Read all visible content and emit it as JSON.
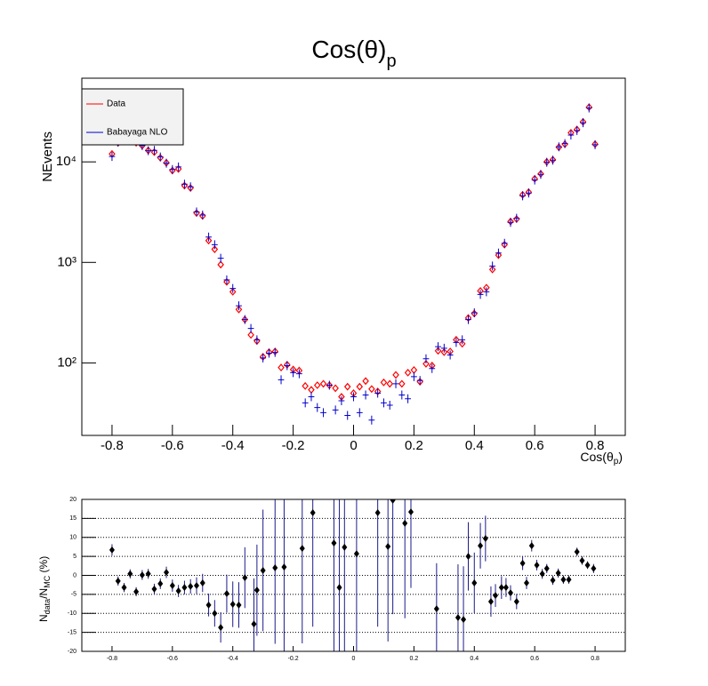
{
  "chart_data": [
    {
      "type": "scatter",
      "title": [
        "Cos(θ)",
        "p"
      ],
      "xlabel": [
        "Cos(θ",
        "p",
        ")"
      ],
      "ylabel": "NEvents",
      "log_y": true,
      "xlim": [
        -0.9,
        0.9
      ],
      "ylim": [
        19,
        68000
      ],
      "xticks": [
        -0.8,
        -0.6,
        -0.4,
        -0.2,
        0,
        0.2,
        0.4,
        0.6,
        0.8
      ],
      "yticks": [
        {
          "value": 100,
          "label": "10²"
        },
        {
          "value": 1000,
          "label": "10³"
        },
        {
          "value": 10000,
          "label": "10⁴"
        }
      ],
      "legend": "top-left",
      "x": [
        -0.8,
        -0.78,
        -0.76,
        -0.74,
        -0.72,
        -0.7,
        -0.68,
        -0.66,
        -0.64,
        -0.62,
        -0.6,
        -0.58,
        -0.56,
        -0.54,
        -0.52,
        -0.5,
        -0.48,
        -0.46,
        -0.44,
        -0.42,
        -0.4,
        -0.38,
        -0.36,
        -0.34,
        -0.32,
        -0.3,
        -0.28,
        -0.26,
        -0.24,
        -0.22,
        -0.2,
        -0.18,
        -0.16,
        -0.14,
        -0.12,
        -0.1,
        -0.08,
        -0.06,
        -0.04,
        -0.02,
        0,
        0.02,
        0.04,
        0.06,
        0.08,
        0.1,
        0.12,
        0.14,
        0.16,
        0.18,
        0.2,
        0.22,
        0.24,
        0.26,
        0.28,
        0.3,
        0.32,
        0.34,
        0.36,
        0.38,
        0.4,
        0.42,
        0.44,
        0.46,
        0.48,
        0.5,
        0.52,
        0.54,
        0.56,
        0.58,
        0.6,
        0.62,
        0.64,
        0.66,
        0.68,
        0.7,
        0.72,
        0.74,
        0.76,
        0.78,
        0.8
      ],
      "series": [
        {
          "name": "Data",
          "color": "#ff0000",
          "marker": "diamond",
          "values": [
            12000,
            15500,
            17000,
            16500,
            15500,
            14500,
            13000,
            12500,
            11000,
            9800,
            8200,
            8500,
            5800,
            5500,
            3100,
            2900,
            1650,
            1350,
            950,
            640,
            510,
            340,
            270,
            190,
            165,
            115,
            128,
            130,
            90,
            96,
            86,
            84,
            59,
            54,
            60,
            62,
            60,
            56,
            46,
            58,
            50,
            58,
            66,
            55,
            52,
            64,
            62,
            76,
            62,
            80,
            85,
            65,
            98,
            94,
            132,
            128,
            130,
            170,
            155,
            280,
            310,
            520,
            560,
            850,
            1180,
            1500,
            2550,
            2700,
            4700,
            5000,
            6800,
            7600,
            10000,
            10500,
            14000,
            15000,
            19500,
            21000,
            25000,
            35000,
            15000
          ]
        },
        {
          "name": "Babayaga NLO",
          "color": "#0000cc",
          "marker": "cross",
          "values": [
            11300,
            15700,
            17500,
            16400,
            16200,
            14500,
            12900,
            13000,
            11200,
            9700,
            8400,
            8900,
            6000,
            5650,
            3180,
            2960,
            1790,
            1500,
            1100,
            670,
            550,
            370,
            270,
            220,
            170,
            112,
            125,
            127,
            68,
            94,
            80,
            78,
            40,
            46,
            36,
            32,
            60,
            34,
            42,
            30,
            46,
            32,
            48,
            27,
            50,
            40,
            38,
            62,
            48,
            44,
            73,
            67,
            110,
            88,
            145,
            140,
            120,
            160,
            170,
            270,
            315,
            480,
            510,
            920,
            1240,
            1550,
            2500,
            2750,
            4600,
            4900,
            6600,
            7500,
            9900,
            10400,
            14100,
            15200,
            18500,
            20500,
            24500,
            34400,
            14800
          ]
        }
      ]
    },
    {
      "type": "errorbar",
      "ylabel": [
        "N",
        "data",
        "/N",
        "MC",
        " (%)"
      ],
      "xlim": [
        -0.9,
        0.9
      ],
      "ylim": [
        -20,
        20
      ],
      "xticks": [
        -0.8,
        -0.6,
        -0.4,
        -0.2,
        0,
        0.2,
        0.4,
        0.6,
        0.8
      ],
      "yticks": [
        -20,
        -15,
        -10,
        -5,
        0,
        5,
        10,
        15,
        20
      ],
      "grid": true,
      "color": "#000000",
      "error_color": "#1c1c8c",
      "x": [
        -0.8,
        -0.78,
        -0.76,
        -0.74,
        -0.72,
        -0.7,
        -0.68,
        -0.66,
        -0.64,
        -0.62,
        -0.6,
        -0.58,
        -0.56,
        -0.54,
        -0.52,
        -0.5,
        -0.48,
        -0.46,
        -0.44,
        -0.42,
        -0.4,
        -0.38,
        -0.36,
        -0.33,
        -0.32,
        -0.3,
        -0.26,
        -0.23,
        -0.17,
        -0.135,
        -0.065,
        -0.047,
        -0.03,
        0.01,
        0.08,
        0.114,
        0.13,
        0.17,
        0.19,
        0.275,
        0.346,
        0.364,
        0.38,
        0.4,
        0.42,
        0.437,
        0.455,
        0.47,
        0.49,
        0.505,
        0.52,
        0.54,
        0.56,
        0.573,
        0.59,
        0.607,
        0.625,
        0.64,
        0.66,
        0.678,
        0.695,
        0.713,
        0.74,
        0.757,
        0.775,
        0.795
      ],
      "values": [
        6.7,
        -1.5,
        -3.2,
        0.4,
        -4.3,
        0.1,
        0.4,
        -3.6,
        -2.2,
        0.8,
        -2.7,
        -4.1,
        -3.2,
        -2.9,
        -2.7,
        -2,
        -7.8,
        -10,
        -13.7,
        -4.8,
        -7.6,
        -7.8,
        -0.6,
        -12.8,
        -3.9,
        1.3,
        2,
        2.2,
        7.1,
        16.5,
        8.5,
        -3.2,
        7.4,
        5.7,
        16.5,
        7.6,
        19.8,
        13.7,
        16.7,
        -8.8,
        -11.1,
        -11.6,
        5,
        -2,
        7.8,
        9.7,
        -6.9,
        -5.3,
        -3.2,
        -3.2,
        -4.6,
        -6.9,
        3.2,
        -2,
        7.8,
        2.7,
        0.4,
        1.8,
        -1.3,
        0.6,
        -1.1,
        -1.1,
        6.2,
        3.9,
        2.7,
        1.8
      ],
      "errors": [
        1.5,
        1.2,
        1.2,
        1.2,
        1.2,
        1.3,
        1.3,
        1.4,
        1.4,
        1.5,
        1.6,
        1.6,
        1.8,
        1.9,
        2.2,
        2.4,
        3,
        3.5,
        4,
        5,
        6,
        6,
        8,
        12,
        12,
        16,
        20,
        24,
        25,
        30,
        30,
        30,
        28,
        30,
        30,
        25,
        30,
        25,
        20,
        12,
        14,
        14,
        9,
        8,
        6,
        6,
        4,
        3,
        3,
        2.5,
        2,
        2,
        1.8,
        1.6,
        1.5,
        1.4,
        1.3,
        1.2,
        1.2,
        1.2,
        1.1,
        1.1,
        1.1,
        1.1,
        1,
        1.2
      ]
    }
  ]
}
